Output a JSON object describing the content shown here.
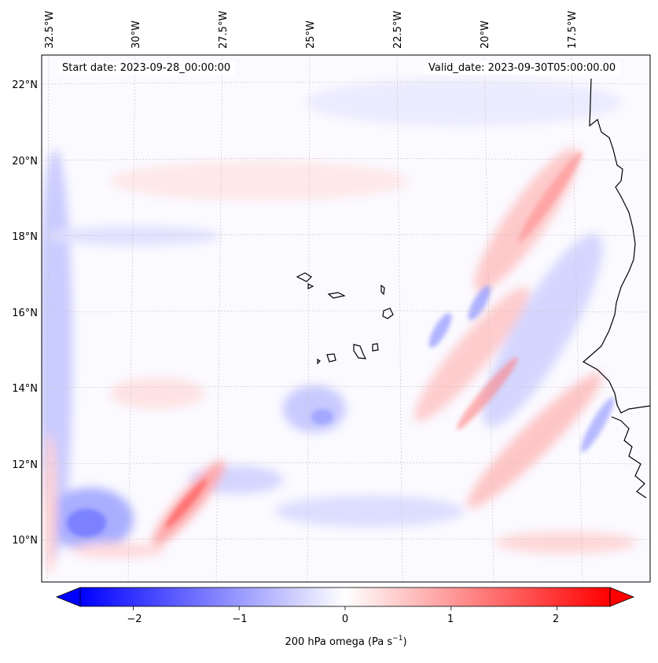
{
  "map": {
    "start_date_text": "Start date: 2023-09-28_00:00:00",
    "valid_date_text": "Valid_date: 2023-09-30T05:00:00.00",
    "lon_labels": [
      "32.5°W",
      "30°W",
      "27.5°W",
      "25°W",
      "22.5°W",
      "20°W",
      "17.5°W"
    ],
    "lat_labels": [
      "22°N",
      "20°N",
      "18°N",
      "16°N",
      "14°N",
      "12°N",
      "10°N"
    ],
    "lon_range_deg": [
      -32.7,
      -15.3
    ],
    "lat_range_deg": [
      8.9,
      22.8
    ],
    "gridlines": true,
    "colormap": "bwr",
    "colors": {
      "negative": "#0000ff",
      "zero": "#ffffff",
      "positive": "#ff0000",
      "coast": "#000000"
    }
  },
  "colorbar": {
    "label": "200 hPa omega (Pa s",
    "label_sup": "−1",
    "label_close": ")",
    "ticks": [
      "−2",
      "−1",
      "0",
      "1",
      "2"
    ],
    "tick_values": [
      -2,
      -1,
      0,
      1,
      2
    ],
    "range": [
      -2.5,
      2.5
    ],
    "extend": "both"
  }
}
